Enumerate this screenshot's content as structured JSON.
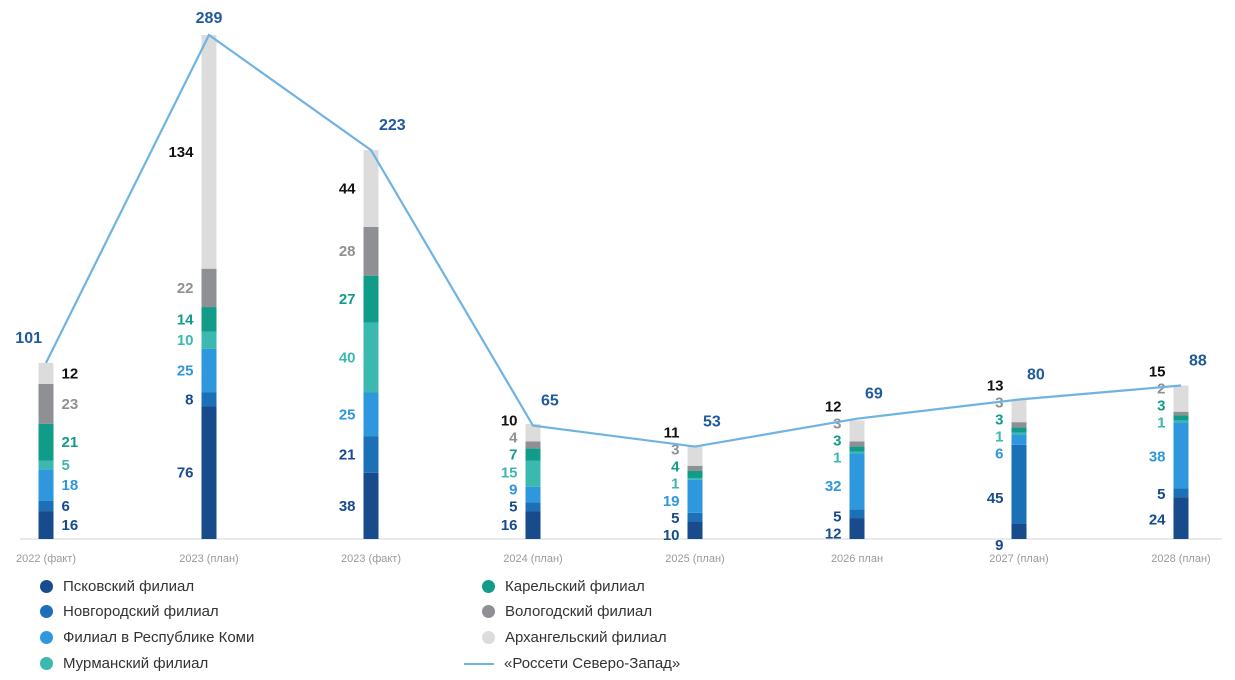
{
  "chart_data": {
    "type": "bar",
    "stacked": true,
    "categories": [
      "2022 (факт)",
      "2023 (план)",
      "2023 (факт)",
      "2024 (план)",
      "2025 (план)",
      "2026 план",
      "2027 (план)",
      "2028 (план)"
    ],
    "series": [
      {
        "name": "Псковский филиал",
        "color": "#174b8c",
        "values": [
          16,
          76,
          38,
          16,
          10,
          12,
          9,
          24
        ]
      },
      {
        "name": "Новгородский филиал",
        "color": "#1c70b8",
        "values": [
          6,
          8,
          21,
          5,
          5,
          5,
          45,
          5
        ]
      },
      {
        "name": "Филиал в Республике Коми",
        "color": "#2f97de",
        "values": [
          18,
          25,
          25,
          9,
          19,
          32,
          6,
          38
        ]
      },
      {
        "name": "Мурманский филиал",
        "color": "#3bb9b0",
        "values": [
          5,
          10,
          40,
          15,
          1,
          1,
          1,
          1
        ]
      },
      {
        "name": "Карельский филиал",
        "color": "#119c8a",
        "values": [
          21,
          14,
          27,
          7,
          4,
          3,
          3,
          3
        ]
      },
      {
        "name": "Вологодский филиал",
        "color": "#8e9093",
        "values": [
          23,
          22,
          28,
          4,
          3,
          3,
          3,
          2
        ]
      },
      {
        "name": "Архангельский филиал",
        "color": "#dcdcdc",
        "values": [
          12,
          134,
          44,
          10,
          11,
          12,
          13,
          15
        ]
      }
    ],
    "line": {
      "name": "«Россети Северо-Запад»",
      "color": "#6fb3e3",
      "values": [
        101,
        289,
        223,
        65,
        53,
        69,
        80,
        88
      ]
    },
    "value_label_colors": [
      "#174b8c",
      "#174b8c",
      "#2f97de",
      "#3bb9b0",
      "#119c8a",
      "#8e9093",
      "#111111"
    ],
    "ylim": [
      0,
      300
    ],
    "grid": false,
    "legend_position": "bottom",
    "title": "",
    "xlabel": "",
    "ylabel": ""
  }
}
